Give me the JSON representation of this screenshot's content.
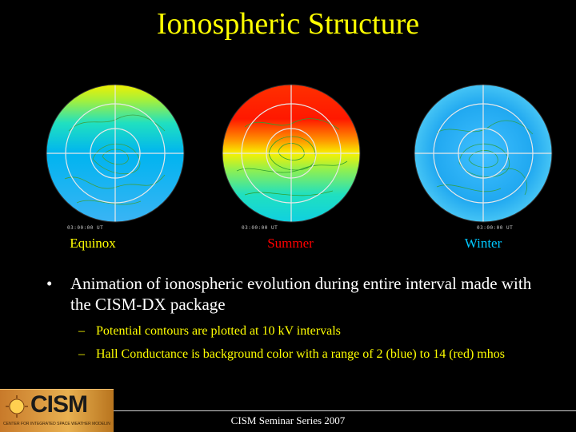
{
  "title": "Ionospheric Structure",
  "panels": [
    {
      "label": "Equinox",
      "stamp": "03:00:00 UT",
      "label_color": "#ffff00"
    },
    {
      "label": "Summer",
      "stamp": "03:00:00 UT",
      "label_color": "#ff0000"
    },
    {
      "label": "Winter",
      "stamp": "03:00:00 UT",
      "label_color": "#00c8ff"
    }
  ],
  "bullets": {
    "main": "Animation of ionospheric evolution during entire interval made with the CISM-DX package",
    "sub": [
      "Potential contours are plotted at 10 kV intervals",
      "Hall Conductance is background color with a range of 2 (blue) to 14 (red) mhos"
    ]
  },
  "logo": {
    "text": "CISM",
    "subtitle": "CENTER FOR INTEGRATED SPACE WEATHER MODELING"
  },
  "footer": "CISM Seminar Series 2007"
}
